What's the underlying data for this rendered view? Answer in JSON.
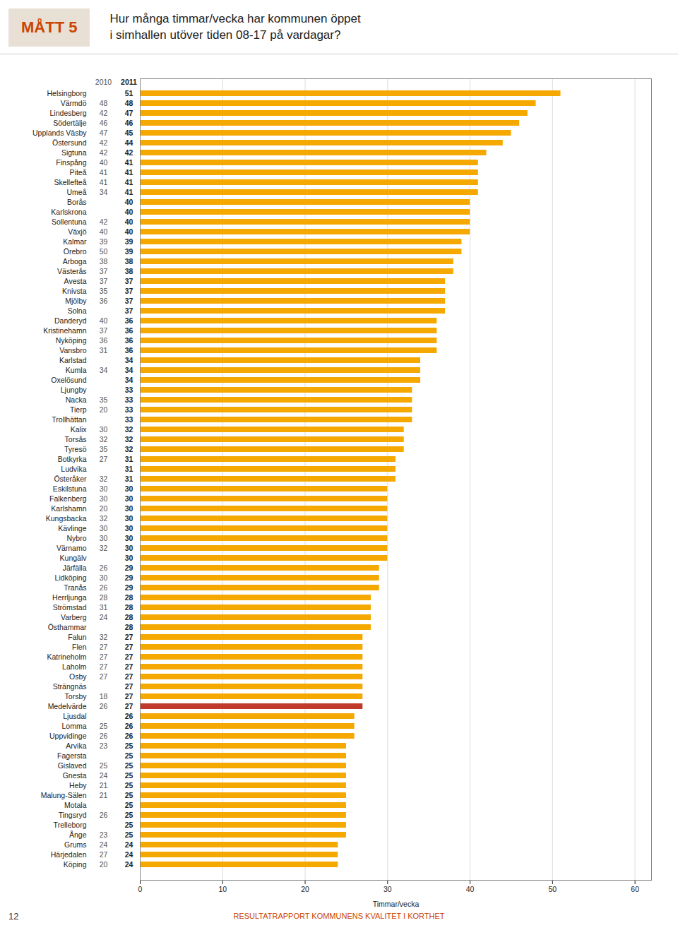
{
  "chart_data": {
    "type": "bar",
    "orientation": "horizontal",
    "title": "Hur många timmar/vecka har kommunen öppet",
    "subtitle": "i simhallen utöver tiden 08-17 på vardagar?",
    "xlabel": "Timmar/vecka",
    "categories": [
      "Helsingborg",
      "Värmdö",
      "Lindesberg",
      "Södertälje",
      "Upplands Väsby",
      "Östersund",
      "Sigtuna",
      "Finspång",
      "Piteå",
      "Skellefteå",
      "Umeå",
      "Borås",
      "Karlskrona",
      "Sollentuna",
      "Växjö",
      "Kalmar",
      "Örebro",
      "Arboga",
      "Västerås",
      "Avesta",
      "Knivsta",
      "Mjölby",
      "Solna",
      "Danderyd",
      "Kristinehamn",
      "Nyköping",
      "Vansbro",
      "Karlstad",
      "Kumla",
      "Oxelösund",
      "Ljungby",
      "Nacka",
      "Tierp",
      "Trollhättan",
      "Kalix",
      "Torsås",
      "Tyresö",
      "Botkyrka",
      "Ludvika",
      "Österåker",
      "Eskilstuna",
      "Falkenberg",
      "Karlshamn",
      "Kungsbacka",
      "Kävlinge",
      "Nybro",
      "Värnamo",
      "Kungälv",
      "Järfälla",
      "Lidköping",
      "Tranås",
      "Herrljunga",
      "Strömstad",
      "Varberg",
      "Östhammar",
      "Falun",
      "Flen",
      "Katrineholm",
      "Laholm",
      "Osby",
      "Strängnäs",
      "Torsby",
      "Medelvärde",
      "Ljusdal",
      "Lomma",
      "Uppvidinge",
      "Arvika",
      "Fagersta",
      "Gislaved",
      "Gnesta",
      "Heby",
      "Malung-Sälen",
      "Motala",
      "Tingsryd",
      "Trelleborg",
      "Ånge",
      "Grums",
      "Härjedalen",
      "Köping"
    ],
    "values": [
      51,
      48,
      47,
      46,
      45,
      44,
      42,
      41,
      41,
      41,
      41,
      40,
      40,
      40,
      40,
      39,
      39,
      38,
      38,
      37,
      37,
      37,
      37,
      36,
      36,
      36,
      36,
      34,
      34,
      34,
      33,
      33,
      33,
      33,
      32,
      32,
      32,
      31,
      31,
      31,
      30,
      30,
      30,
      30,
      30,
      30,
      30,
      30,
      29,
      29,
      29,
      28,
      28,
      28,
      28,
      27,
      27,
      27,
      27,
      27,
      27,
      27,
      27,
      26,
      26,
      26,
      25,
      25,
      25,
      25,
      25,
      25,
      25,
      25,
      25,
      25,
      24,
      24,
      24
    ],
    "previous_values": [
      null,
      48,
      42,
      46,
      47,
      42,
      42,
      40,
      41,
      41,
      34,
      null,
      null,
      42,
      40,
      39,
      50,
      38,
      37,
      37,
      35,
      36,
      null,
      40,
      37,
      36,
      31,
      null,
      34,
      null,
      null,
      35,
      20,
      null,
      30,
      32,
      35,
      27,
      null,
      32,
      30,
      30,
      20,
      32,
      30,
      30,
      32,
      null,
      26,
      30,
      26,
      28,
      31,
      24,
      null,
      32,
      27,
      27,
      27,
      27,
      null,
      18,
      26,
      null,
      25,
      26,
      23,
      null,
      25,
      24,
      21,
      21,
      null,
      26,
      null,
      23,
      24,
      27,
      20
    ],
    "column_labels": [
      "2010",
      "2011"
    ],
    "data_labels": true,
    "colors": [
      "#F5A800",
      "#F5A800",
      "#F5A800",
      "#F5A800",
      "#F5A800",
      "#F5A800",
      "#F5A800",
      "#F5A800",
      "#F5A800",
      "#F5A800",
      "#F5A800",
      "#F5A800",
      "#F5A800",
      "#F5A800",
      "#F5A800",
      "#F5A800",
      "#F5A800",
      "#F5A800",
      "#F5A800",
      "#F5A800",
      "#F5A800",
      "#F5A800",
      "#F5A800",
      "#F5A800",
      "#F5A800",
      "#F5A800",
      "#F5A800",
      "#F5A800",
      "#F5A800",
      "#F5A800",
      "#F5A800",
      "#F5A800",
      "#F5A800",
      "#F5A800",
      "#F5A800",
      "#F5A800",
      "#F5A800",
      "#F5A800",
      "#F5A800",
      "#F5A800",
      "#F5A800",
      "#F5A800",
      "#F5A800",
      "#F5A800",
      "#F5A800",
      "#F5A800",
      "#F5A800",
      "#F5A800",
      "#F5A800",
      "#F5A800",
      "#F5A800",
      "#F5A800",
      "#F5A800",
      "#F5A800",
      "#F5A800",
      "#F5A800",
      "#F5A800",
      "#F5A800",
      "#F5A800",
      "#F5A800",
      "#F5A800",
      "#F5A800",
      "#C0392B",
      "#F5A800",
      "#F5A800",
      "#F5A800",
      "#F5A800",
      "#F5A800",
      "#F5A800",
      "#F5A800",
      "#F5A800",
      "#F5A800",
      "#F5A800",
      "#F5A800",
      "#F5A800",
      "#F5A800",
      "#F5A800",
      "#F5A800",
      "#F5A800"
    ],
    "xlim": [
      0,
      62
    ],
    "xticks": [
      0,
      10,
      20,
      30,
      40,
      50,
      60
    ],
    "grid": true,
    "annotations": [
      "MÅTT 5",
      "12",
      "RESULTATRAPPORT KOMMUNENS KVALITET I KORTHET"
    ]
  }
}
